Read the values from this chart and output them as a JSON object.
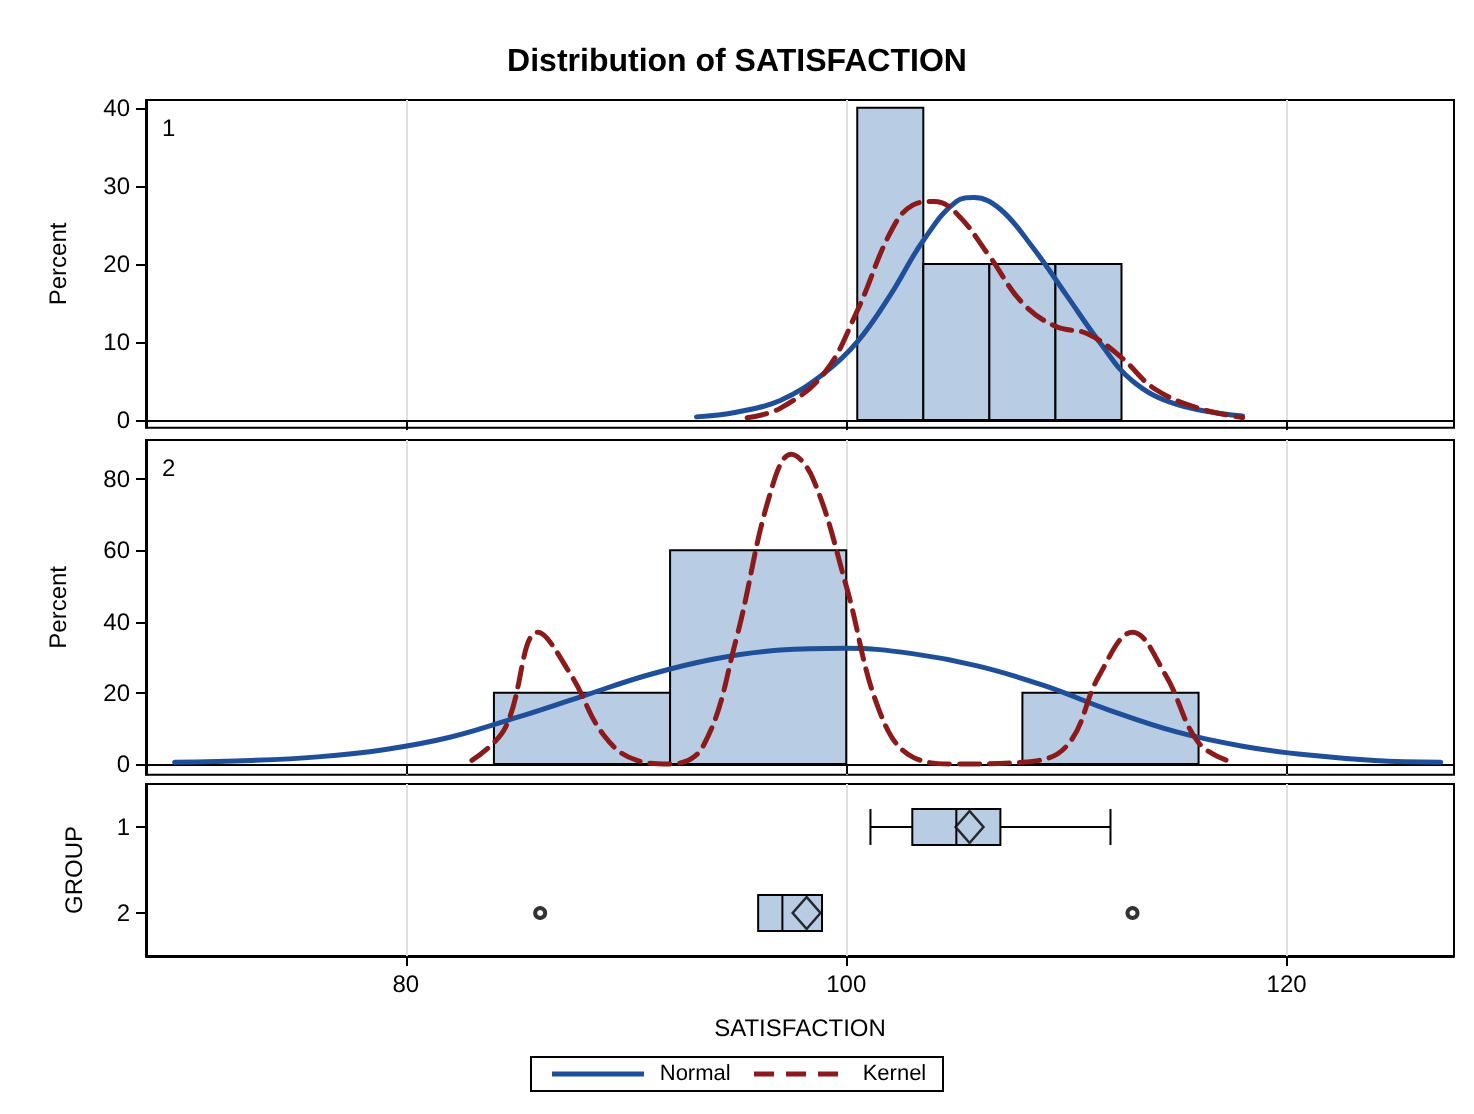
{
  "chart_data": [
    {
      "type": "histogram",
      "title": "Distribution of SATISFACTION",
      "ylabel": "Percent",
      "annotations": [
        "1"
      ],
      "bins": [
        100.5,
        103.5,
        106.5,
        109.5,
        112.5
      ],
      "values": [
        40,
        20,
        20,
        20
      ],
      "color": "#b8cce4",
      "xlim": [
        68.2,
        127.6
      ],
      "xticks": [
        80,
        100,
        120
      ],
      "ylim": [
        -1,
        41
      ],
      "yticks": [
        0,
        10,
        20,
        30,
        40
      ],
      "tick_labels": "y",
      "grid": "x",
      "marker": "none",
      "series": [
        {
          "type": "line",
          "color": "#1f4f99",
          "line_style": "solid",
          "x": [
            93.2,
            95,
            97,
            99,
            100.5,
            102,
            103.5,
            105,
            105.8,
            107,
            108.5,
            110,
            111.5,
            113,
            115,
            118
          ],
          "values": [
            0.4,
            1,
            2.5,
            6,
            10,
            16,
            23,
            28,
            28.5,
            27,
            22,
            16,
            10,
            5,
            2,
            0.5
          ]
        },
        {
          "type": "line",
          "color": "#8b1a1a",
          "line_style": "dashed",
          "x": [
            95.5,
            97,
            99,
            100.5,
            102,
            103,
            104,
            105,
            106.5,
            108,
            109.5,
            111,
            112.5,
            114,
            116,
            118
          ],
          "values": [
            0.3,
            1.5,
            6,
            14,
            24,
            27.5,
            28,
            26.5,
            21,
            15,
            12,
            11,
            8,
            4,
            1.5,
            0.3
          ]
        }
      ]
    },
    {
      "type": "histogram",
      "ylabel": "Percent",
      "annotations": [
        "2"
      ],
      "bins": [
        84,
        92,
        100,
        108,
        116
      ],
      "values": [
        20,
        60,
        0,
        20
      ],
      "color": "#b8cce4",
      "xlim": [
        68.2,
        127.6
      ],
      "xticks": [
        80,
        100,
        120
      ],
      "ylim": [
        -3,
        91
      ],
      "yticks": [
        0,
        20,
        40,
        60,
        80
      ],
      "tick_labels": "y",
      "grid": "x",
      "marker": "none",
      "legend": "bottom",
      "series": [
        {
          "name": "Normal",
          "type": "line",
          "color": "#1f4f99",
          "line_style": "solid",
          "x": [
            69.5,
            73,
            76,
            79,
            82,
            85,
            88,
            91,
            94,
            97,
            100,
            103,
            106,
            109,
            112,
            115,
            118,
            121,
            124,
            127
          ],
          "values": [
            0.5,
            1,
            2,
            4,
            7.5,
            13,
            19,
            25,
            29.5,
            32,
            32.5,
            31,
            27.5,
            22,
            15,
            9,
            5,
            2.5,
            1,
            0.5
          ]
        },
        {
          "name": "Kernel",
          "type": "line",
          "color": "#8b1a1a",
          "line_style": "dashed",
          "x": [
            83,
            84.5,
            86,
            87.5,
            89,
            90.5,
            92,
            93.5,
            95,
            96.5,
            97.5,
            98.5,
            100,
            101.5,
            103,
            105,
            108,
            110,
            111.5,
            113,
            114.5,
            116,
            117.5
          ],
          "values": [
            1,
            10,
            37,
            25,
            8,
            1,
            0,
            5,
            35,
            75,
            87,
            80,
            50,
            15,
            2,
            0,
            0.5,
            5,
            25,
            37,
            25,
            6,
            0.5
          ]
        }
      ]
    },
    {
      "type": "box",
      "orientation": "horizontal",
      "ylabel": "GROUP",
      "xlabel": "SATISFACTION",
      "categories": [
        "1",
        "2"
      ],
      "color": "#b8cce4",
      "xlim": [
        68.2,
        127.6
      ],
      "xticks": [
        80,
        100,
        120
      ],
      "grid": "x",
      "boxes": [
        {
          "low": 101.1,
          "q1": 103.0,
          "median": 105.0,
          "q3": 107.0,
          "high": 112.0,
          "mean": 105.6
        },
        {
          "low": 96.0,
          "q1": 96.0,
          "median": 97.1,
          "q3": 98.9,
          "high": 98.9,
          "mean": 98.2,
          "outliers": [
            86.1,
            113.0
          ]
        }
      ]
    }
  ]
}
